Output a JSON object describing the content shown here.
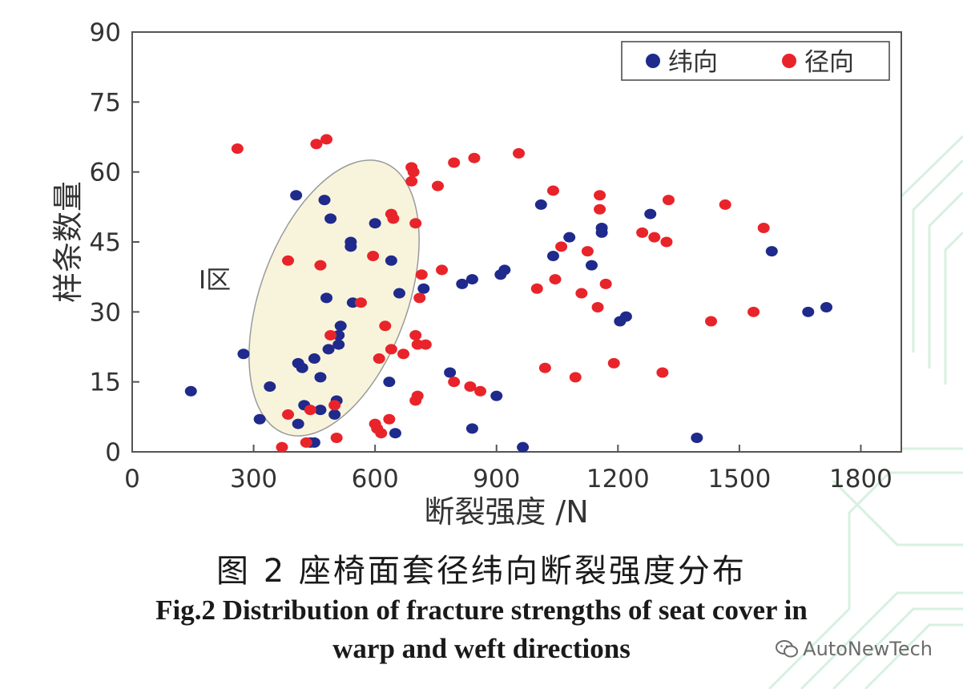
{
  "chart_data": {
    "type": "scatter",
    "title": "",
    "xlabel": "断裂强度 /N",
    "ylabel": "样条数量",
    "xlim": [
      0,
      1900
    ],
    "ylim": [
      0,
      90
    ],
    "xticks": [
      "0",
      "300",
      "600",
      "900",
      "1200",
      "1500",
      "1800"
    ],
    "xtick_values": [
      0,
      300,
      600,
      900,
      1200,
      1500,
      1800
    ],
    "yticks": [
      "0",
      "15",
      "30",
      "45",
      "60",
      "75",
      "90"
    ],
    "ytick_values": [
      0,
      15,
      30,
      45,
      60,
      75,
      90
    ],
    "grid": false,
    "legend_position": "top-right",
    "annotation": "I区",
    "series": [
      {
        "name": "纬向",
        "color": "#1f2a8c",
        "points": [
          [
            145,
            13
          ],
          [
            275,
            21
          ],
          [
            315,
            7
          ],
          [
            340,
            14
          ],
          [
            405,
            55
          ],
          [
            410,
            19
          ],
          [
            410,
            6
          ],
          [
            420,
            18
          ],
          [
            425,
            10
          ],
          [
            440,
            2
          ],
          [
            450,
            2
          ],
          [
            450,
            20
          ],
          [
            465,
            9
          ],
          [
            465,
            16
          ],
          [
            475,
            54
          ],
          [
            480,
            33
          ],
          [
            485,
            22
          ],
          [
            490,
            50
          ],
          [
            500,
            8
          ],
          [
            505,
            11
          ],
          [
            510,
            23
          ],
          [
            510,
            25
          ],
          [
            515,
            27
          ],
          [
            540,
            45
          ],
          [
            540,
            44
          ],
          [
            545,
            32
          ],
          [
            600,
            49
          ],
          [
            635,
            15
          ],
          [
            640,
            41
          ],
          [
            650,
            4
          ],
          [
            660,
            34
          ],
          [
            720,
            35
          ],
          [
            785,
            17
          ],
          [
            815,
            36
          ],
          [
            840,
            37
          ],
          [
            840,
            5
          ],
          [
            900,
            12
          ],
          [
            910,
            38
          ],
          [
            920,
            39
          ],
          [
            965,
            1
          ],
          [
            1010,
            53
          ],
          [
            1040,
            42
          ],
          [
            1080,
            46
          ],
          [
            1135,
            40
          ],
          [
            1160,
            47
          ],
          [
            1160,
            48
          ],
          [
            1205,
            28
          ],
          [
            1220,
            29
          ],
          [
            1280,
            51
          ],
          [
            1395,
            3
          ],
          [
            1580,
            43
          ],
          [
            1670,
            30
          ],
          [
            1715,
            31
          ]
        ]
      },
      {
        "name": "径向",
        "color": "#e8242a",
        "points": [
          [
            260,
            65
          ],
          [
            370,
            1
          ],
          [
            385,
            8
          ],
          [
            385,
            41
          ],
          [
            430,
            2
          ],
          [
            440,
            9
          ],
          [
            455,
            66
          ],
          [
            465,
            40
          ],
          [
            480,
            67
          ],
          [
            490,
            25
          ],
          [
            500,
            10
          ],
          [
            505,
            3
          ],
          [
            565,
            32
          ],
          [
            595,
            42
          ],
          [
            600,
            6
          ],
          [
            605,
            5
          ],
          [
            610,
            20
          ],
          [
            615,
            4
          ],
          [
            625,
            27
          ],
          [
            635,
            7
          ],
          [
            640,
            22
          ],
          [
            640,
            51
          ],
          [
            645,
            50
          ],
          [
            670,
            21
          ],
          [
            690,
            61
          ],
          [
            690,
            58
          ],
          [
            695,
            60
          ],
          [
            700,
            49
          ],
          [
            700,
            25
          ],
          [
            700,
            11
          ],
          [
            705,
            23
          ],
          [
            705,
            12
          ],
          [
            710,
            33
          ],
          [
            715,
            38
          ],
          [
            725,
            23
          ],
          [
            755,
            57
          ],
          [
            765,
            39
          ],
          [
            795,
            62
          ],
          [
            795,
            15
          ],
          [
            835,
            14
          ],
          [
            845,
            63
          ],
          [
            860,
            13
          ],
          [
            955,
            64
          ],
          [
            1000,
            35
          ],
          [
            1020,
            18
          ],
          [
            1040,
            56
          ],
          [
            1045,
            37
          ],
          [
            1060,
            44
          ],
          [
            1095,
            16
          ],
          [
            1110,
            34
          ],
          [
            1125,
            43
          ],
          [
            1150,
            31
          ],
          [
            1155,
            55
          ],
          [
            1155,
            52
          ],
          [
            1170,
            36
          ],
          [
            1190,
            19
          ],
          [
            1260,
            47
          ],
          [
            1290,
            46
          ],
          [
            1310,
            17
          ],
          [
            1320,
            45
          ],
          [
            1325,
            54
          ],
          [
            1430,
            28
          ],
          [
            1465,
            53
          ],
          [
            1535,
            30
          ],
          [
            1560,
            48
          ]
        ]
      }
    ]
  },
  "caption": {
    "cn": "图 2  座椅面套径纬向断裂强度分布",
    "en_line1": "Fig.2   Distribution of fracture strengths of seat cover in",
    "en_line2": "warp and weft directions"
  },
  "watermark": {
    "text": "AutoNewTech",
    "icon": "wechat-icon"
  }
}
